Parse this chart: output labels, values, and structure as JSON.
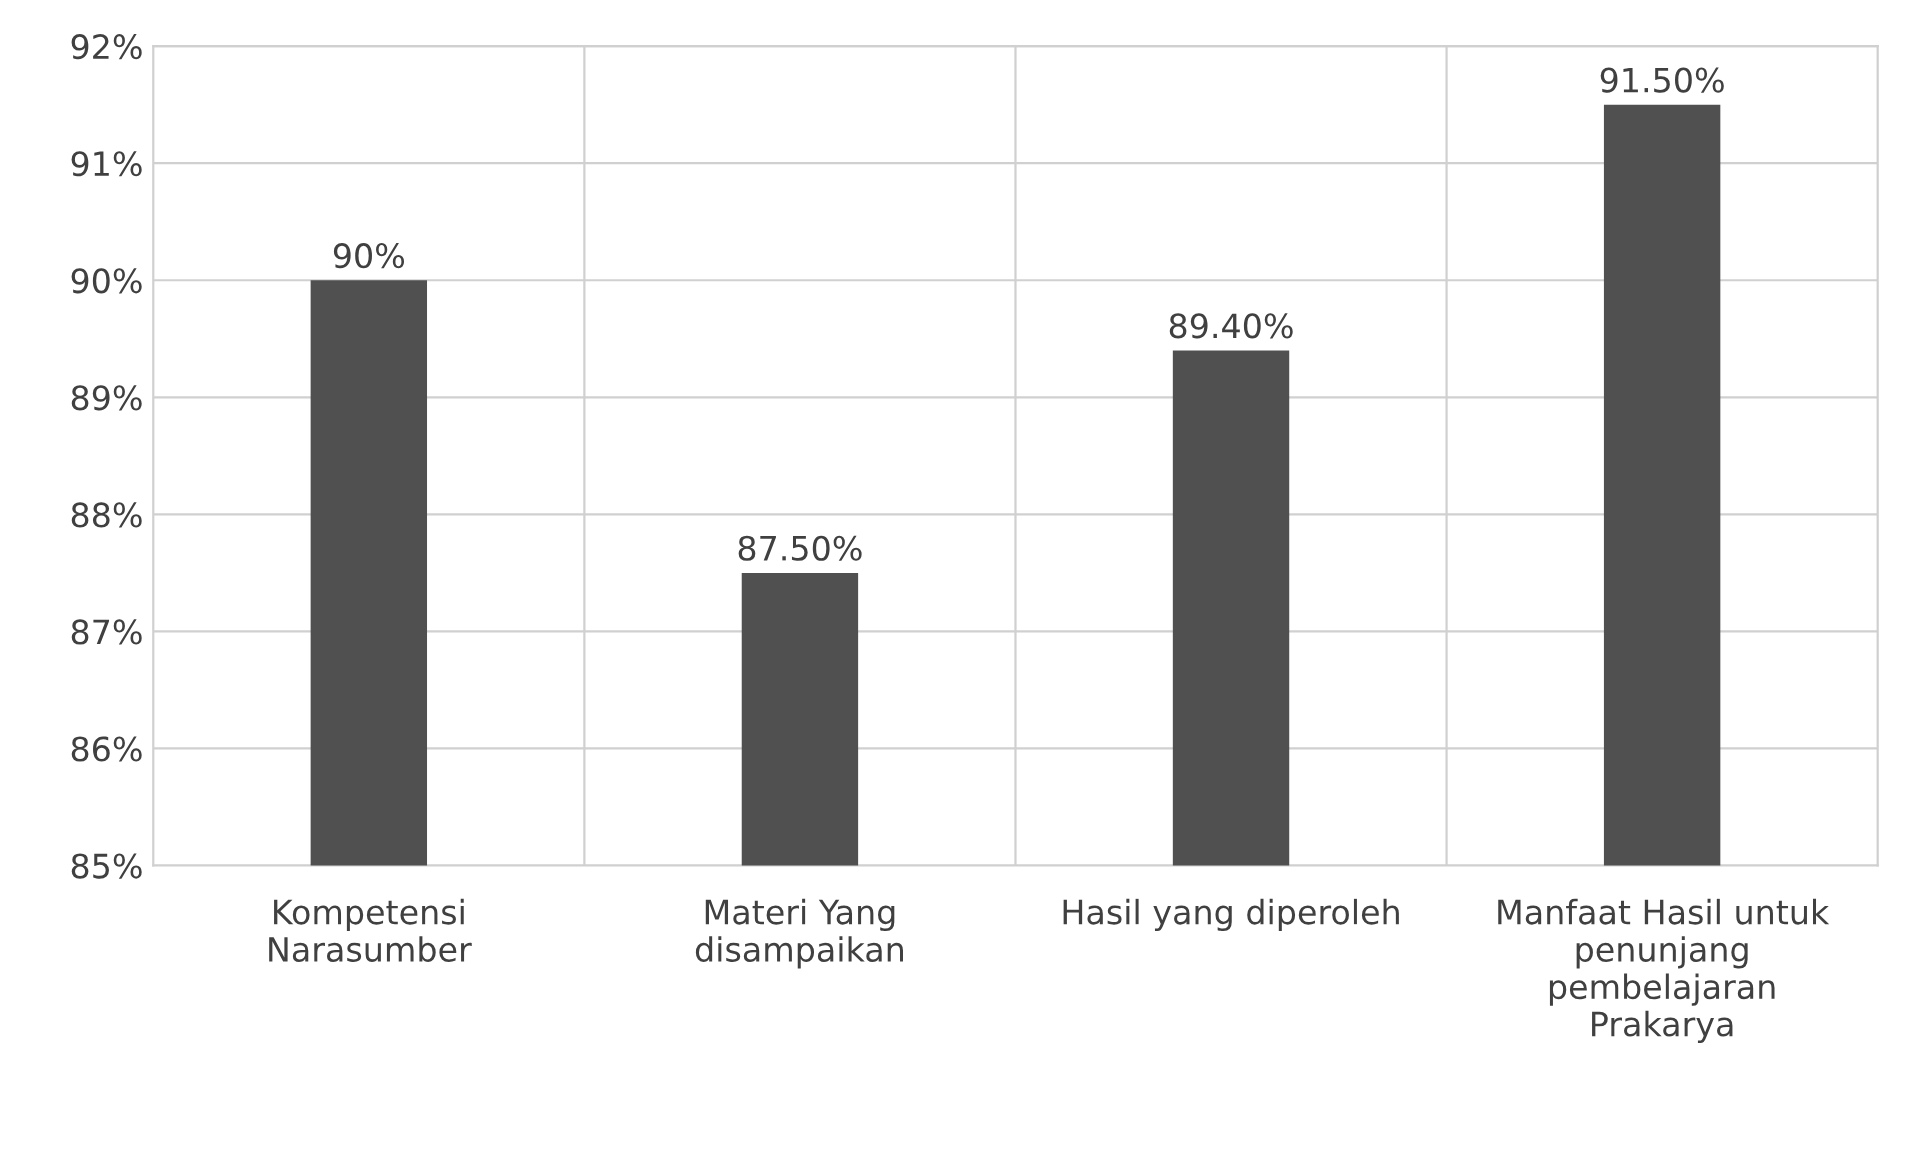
{
  "chart_data": {
    "type": "bar",
    "categories": [
      "Kompetensi\nNarasumber",
      "Materi Yang\ndisampaikan",
      "Hasil yang diperoleh",
      "Manfaat Hasil untuk\npenunjang\npembelajaran\nPrakarya"
    ],
    "values": [
      90,
      87.5,
      89.4,
      91.5
    ],
    "value_labels": [
      "90%",
      "87.50%",
      "89.40%",
      "91.50%"
    ],
    "color": "#505050",
    "ylim": [
      85,
      92
    ],
    "yticks": [
      {
        "value": 85,
        "label": "85%"
      },
      {
        "value": 86,
        "label": "86%"
      },
      {
        "value": 87,
        "label": "87%"
      },
      {
        "value": 88,
        "label": "88%"
      },
      {
        "value": 89,
        "label": "89%"
      },
      {
        "value": 90,
        "label": "90%"
      },
      {
        "value": 91,
        "label": "91%"
      },
      {
        "value": 92,
        "label": "92%"
      }
    ],
    "grid": true
  }
}
